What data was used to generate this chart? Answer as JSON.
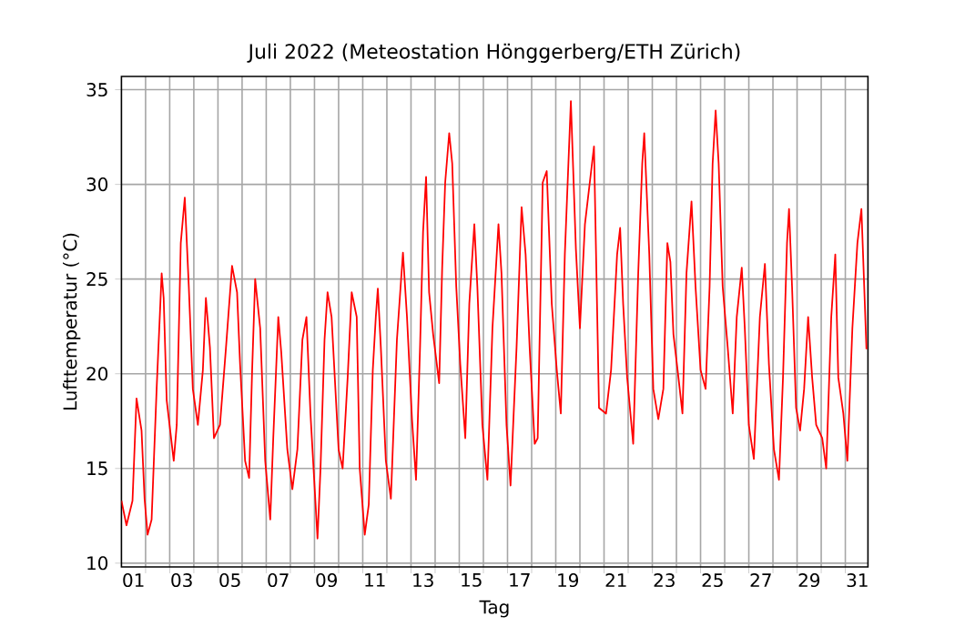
{
  "chart_data": {
    "type": "line",
    "title": "Juli 2022  (Meteostation Hönggerberg/ETH Zürich)",
    "xlabel": "Tag",
    "ylabel": "Lufttemperatur (°C)",
    "x": [
      "2022-07-01T00:00",
      "2022-07-01T05:00",
      "2022-07-01T11:00",
      "2022-07-01T15:00",
      "2022-07-01T20:00",
      "2022-07-01T23:00",
      "2022-07-02T02:00",
      "2022-07-02T06:00",
      "2022-07-02T11:00",
      "2022-07-02T16:00",
      "2022-07-02T18:00",
      "2022-07-02T21:00",
      "2022-07-03T04:00",
      "2022-07-03T07:00",
      "2022-07-03T11:00",
      "2022-07-03T15:00",
      "2022-07-03T19:00",
      "2022-07-03T23:00",
      "2022-07-04T04:00",
      "2022-07-04T09:00",
      "2022-07-04T12:00",
      "2022-07-04T16:00",
      "2022-07-04T20:00",
      "2022-07-05T02:00",
      "2022-07-05T08:00",
      "2022-07-05T14:00",
      "2022-07-05T19:00",
      "2022-07-05T22:00",
      "2022-07-06T03:00",
      "2022-07-06T07:00",
      "2022-07-06T10:00",
      "2022-07-06T13:00",
      "2022-07-06T18:00",
      "2022-07-06T23:00",
      "2022-07-07T04:00",
      "2022-07-07T07:00",
      "2022-07-07T12:00",
      "2022-07-07T15:00",
      "2022-07-07T21:00",
      "2022-07-08T02:00",
      "2022-07-08T07:00",
      "2022-07-08T12:00",
      "2022-07-08T16:00",
      "2022-07-08T20:00",
      "2022-07-09T03:00",
      "2022-07-09T06:00",
      "2022-07-09T10:00",
      "2022-07-09T13:00",
      "2022-07-09T17:00",
      "2022-07-10T00:00",
      "2022-07-10T04:00",
      "2022-07-10T09:00",
      "2022-07-10T13:00",
      "2022-07-10T18:00",
      "2022-07-10T21:00",
      "2022-07-11T02:00",
      "2022-07-11T06:00",
      "2022-07-11T10:00",
      "2022-07-11T13:00",
      "2022-07-11T15:00",
      "2022-07-11T18:00",
      "2022-07-11T23:00",
      "2022-07-12T04:00",
      "2022-07-12T10:00",
      "2022-07-12T16:00",
      "2022-07-12T20:00",
      "2022-07-13T01:00",
      "2022-07-13T05:00",
      "2022-07-13T09:00",
      "2022-07-13T12:00",
      "2022-07-13T15:00",
      "2022-07-13T18:00",
      "2022-07-13T22:00",
      "2022-07-14T01:00",
      "2022-07-14T04:00",
      "2022-07-14T07:00",
      "2022-07-14T10:00",
      "2022-07-14T14:00",
      "2022-07-14T17:00",
      "2022-07-14T21:00",
      "2022-07-15T01:00",
      "2022-07-15T06:00",
      "2022-07-15T10:00",
      "2022-07-15T15:00",
      "2022-07-15T18:00",
      "2022-07-15T23:00",
      "2022-07-16T04:00",
      "2022-07-16T09:00",
      "2022-07-16T15:00",
      "2022-07-16T18:00",
      "2022-07-16T23:00",
      "2022-07-17T03:00",
      "2022-07-17T09:00",
      "2022-07-17T14:00",
      "2022-07-17T18:00",
      "2022-07-17T22:00",
      "2022-07-18T03:00",
      "2022-07-18T06:00",
      "2022-07-18T11:00",
      "2022-07-18T15:00",
      "2022-07-18T20:00",
      "2022-07-19T01:00",
      "2022-07-19T05:00",
      "2022-07-19T09:00",
      "2022-07-19T15:00",
      "2022-07-19T20:00",
      "2022-07-20T00:00",
      "2022-07-20T05:00",
      "2022-07-20T14:00",
      "2022-07-20T19:00",
      "2022-07-21T02:00",
      "2022-07-21T07:00",
      "2022-07-21T13:00",
      "2022-07-21T16:00",
      "2022-07-21T19:00",
      "2022-07-21T23:00",
      "2022-07-22T05:00",
      "2022-07-22T10:00",
      "2022-07-22T14:00",
      "2022-07-22T16:00",
      "2022-07-22T21:00",
      "2022-07-23T01:00",
      "2022-07-23T06:00",
      "2022-07-23T11:00",
      "2022-07-23T15:00",
      "2022-07-23T18:00",
      "2022-07-23T21:00",
      "2022-07-24T02:00",
      "2022-07-24T06:00",
      "2022-07-24T10:00",
      "2022-07-24T15:00",
      "2022-07-24T19:00",
      "2022-07-25T00:00",
      "2022-07-25T05:00",
      "2022-07-25T09:00",
      "2022-07-25T12:00",
      "2022-07-25T15:00",
      "2022-07-25T18:00",
      "2022-07-25T22:00",
      "2022-07-26T03:00",
      "2022-07-26T08:00",
      "2022-07-26T12:00",
      "2022-07-26T17:00",
      "2022-07-26T20:00",
      "2022-07-27T00:00",
      "2022-07-27T05:00",
      "2022-07-27T11:00",
      "2022-07-27T16:00",
      "2022-07-27T20:00",
      "2022-07-28T01:00",
      "2022-07-28T06:00",
      "2022-07-28T10:00",
      "2022-07-28T14:00",
      "2022-07-28T16:00",
      "2022-07-28T19:00",
      "2022-07-28T23:00",
      "2022-07-29T03:00",
      "2022-07-29T07:00",
      "2022-07-29T11:00",
      "2022-07-29T15:00",
      "2022-07-29T19:00",
      "2022-07-30T01:00",
      "2022-07-30T05:00",
      "2022-07-30T10:00",
      "2022-07-30T14:00",
      "2022-07-30T17:00",
      "2022-07-30T22:00",
      "2022-07-31T02:00",
      "2022-07-31T07:00",
      "2022-07-31T12:00",
      "2022-07-31T16:00",
      "2022-07-31T21:00"
    ],
    "series": [
      {
        "color": "#ff0000",
        "values": [
          13.3,
          12.0,
          13.3,
          18.7,
          17.0,
          13.4,
          11.5,
          12.3,
          19.2,
          25.3,
          24.0,
          18.6,
          15.4,
          17.3,
          26.9,
          29.3,
          24.6,
          19.2,
          17.3,
          20.2,
          24.0,
          21.4,
          16.6,
          17.3,
          21.4,
          25.7,
          24.3,
          20.5,
          15.4,
          14.5,
          20.2,
          25.0,
          22.4,
          15.4,
          12.3,
          16.6,
          23.0,
          21.1,
          16.0,
          13.9,
          16.0,
          21.8,
          23.0,
          17.9,
          11.3,
          15.0,
          21.8,
          24.3,
          23.0,
          16.0,
          15.0,
          19.8,
          24.3,
          23.0,
          15.0,
          11.5,
          13.1,
          20.2,
          23.0,
          24.5,
          21.4,
          15.4,
          13.4,
          21.8,
          26.4,
          23.0,
          17.6,
          14.4,
          21.4,
          27.5,
          30.4,
          24.3,
          22.1,
          20.8,
          19.5,
          25.6,
          30.1,
          32.7,
          31.1,
          24.6,
          20.5,
          16.6,
          23.7,
          27.9,
          24.6,
          17.3,
          14.4,
          22.4,
          27.9,
          25.3,
          17.3,
          14.1,
          21.4,
          28.8,
          26.3,
          21.4,
          16.3,
          16.6,
          30.1,
          30.7,
          23.7,
          20.2,
          17.9,
          26.3,
          34.4,
          26.6,
          22.4,
          27.9,
          32.0,
          18.2,
          17.9,
          20.2,
          26.3,
          27.7,
          23.7,
          19.8,
          16.3,
          25.3,
          31.1,
          32.7,
          26.3,
          19.2,
          17.6,
          19.2,
          26.9,
          25.9,
          22.1,
          19.8,
          17.9,
          25.3,
          29.1,
          24.6,
          20.2,
          19.2,
          24.6,
          31.1,
          33.9,
          31.1,
          24.6,
          21.4,
          17.9,
          23.0,
          25.6,
          22.4,
          17.3,
          15.5,
          23.0,
          25.8,
          20.5,
          16.0,
          14.4,
          19.8,
          26.9,
          28.7,
          24.6,
          18.2,
          17.0,
          19.2,
          23.0,
          19.8,
          17.3,
          16.6,
          15.0,
          23.0,
          26.3,
          19.8,
          17.9,
          15.4,
          22.4,
          26.9,
          28.7,
          21.3
        ]
      }
    ],
    "xlim": [
      "2022-07-01T00:00",
      "2022-07-31T22:30"
    ],
    "xticks": [
      {
        "value": "2022-07-01T12:00",
        "label": "01"
      },
      {
        "value": "2022-07-03T12:00",
        "label": "03"
      },
      {
        "value": "2022-07-05T12:00",
        "label": "05"
      },
      {
        "value": "2022-07-07T12:00",
        "label": "07"
      },
      {
        "value": "2022-07-09T12:00",
        "label": "09"
      },
      {
        "value": "2022-07-11T12:00",
        "label": "11"
      },
      {
        "value": "2022-07-13T12:00",
        "label": "13"
      },
      {
        "value": "2022-07-15T12:00",
        "label": "15"
      },
      {
        "value": "2022-07-17T12:00",
        "label": "17"
      },
      {
        "value": "2022-07-19T12:00",
        "label": "19"
      },
      {
        "value": "2022-07-21T12:00",
        "label": "21"
      },
      {
        "value": "2022-07-23T12:00",
        "label": "23"
      },
      {
        "value": "2022-07-25T12:00",
        "label": "25"
      },
      {
        "value": "2022-07-27T12:00",
        "label": "27"
      },
      {
        "value": "2022-07-29T12:00",
        "label": "29"
      },
      {
        "value": "2022-07-31T12:00",
        "label": "31"
      },
      {
        "value": "2022-07-02",
        "label": null
      },
      {
        "value": "2022-07-03",
        "label": null
      },
      {
        "value": "2022-07-04",
        "label": null
      },
      {
        "value": "2022-07-05",
        "label": null
      },
      {
        "value": "2022-07-06",
        "label": null
      },
      {
        "value": "2022-07-07",
        "label": null
      },
      {
        "value": "2022-07-08",
        "label": null
      },
      {
        "value": "2022-07-09",
        "label": null
      },
      {
        "value": "2022-07-10",
        "label": null
      },
      {
        "value": "2022-07-11",
        "label": null
      },
      {
        "value": "2022-07-12",
        "label": null
      },
      {
        "value": "2022-07-13",
        "label": null
      },
      {
        "value": "2022-07-14",
        "label": null
      },
      {
        "value": "2022-07-15",
        "label": null
      },
      {
        "value": "2022-07-16",
        "label": null
      },
      {
        "value": "2022-07-17",
        "label": null
      },
      {
        "value": "2022-07-18",
        "label": null
      },
      {
        "value": "2022-07-19",
        "label": null
      },
      {
        "value": "2022-07-20",
        "label": null
      },
      {
        "value": "2022-07-21",
        "label": null
      },
      {
        "value": "2022-07-22",
        "label": null
      },
      {
        "value": "2022-07-23",
        "label": null
      },
      {
        "value": "2022-07-24",
        "label": null
      },
      {
        "value": "2022-07-25",
        "label": null
      },
      {
        "value": "2022-07-26",
        "label": null
      },
      {
        "value": "2022-07-27",
        "label": null
      },
      {
        "value": "2022-07-28",
        "label": null
      },
      {
        "value": "2022-07-29",
        "label": null
      },
      {
        "value": "2022-07-30",
        "label": null
      },
      {
        "value": "2022-07-31",
        "label": null
      }
    ],
    "ylim": [
      9.8,
      35.7
    ],
    "yticks": [
      10,
      15,
      20,
      25,
      30,
      35
    ],
    "grid": true
  }
}
